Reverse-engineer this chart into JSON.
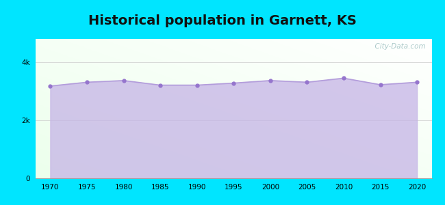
{
  "title": "Historical population in Garnett, KS",
  "pop_data": [
    [
      1970,
      3179
    ],
    [
      1975,
      3310
    ],
    [
      1980,
      3368
    ],
    [
      1985,
      3210
    ],
    [
      1990,
      3210
    ],
    [
      1995,
      3280
    ],
    [
      2000,
      3368
    ],
    [
      2005,
      3310
    ],
    [
      2010,
      3450
    ],
    [
      2015,
      3225
    ],
    [
      2020,
      3310
    ]
  ],
  "ylim": [
    0,
    4800
  ],
  "ytick_vals": [
    0,
    2000,
    4000
  ],
  "ytick_labels": [
    "0",
    "2k",
    "4k"
  ],
  "xticks": [
    1970,
    1975,
    1980,
    1985,
    1990,
    1995,
    2000,
    2005,
    2010,
    2015,
    2020
  ],
  "line_color": "#b39ddb",
  "fill_color": "#c5b3e6",
  "fill_alpha": 0.75,
  "marker_color": "#9575cd",
  "marker_size": 3.5,
  "background_outer": "#00e5ff",
  "title_fontsize": 14,
  "watermark": "  City-Data.com"
}
